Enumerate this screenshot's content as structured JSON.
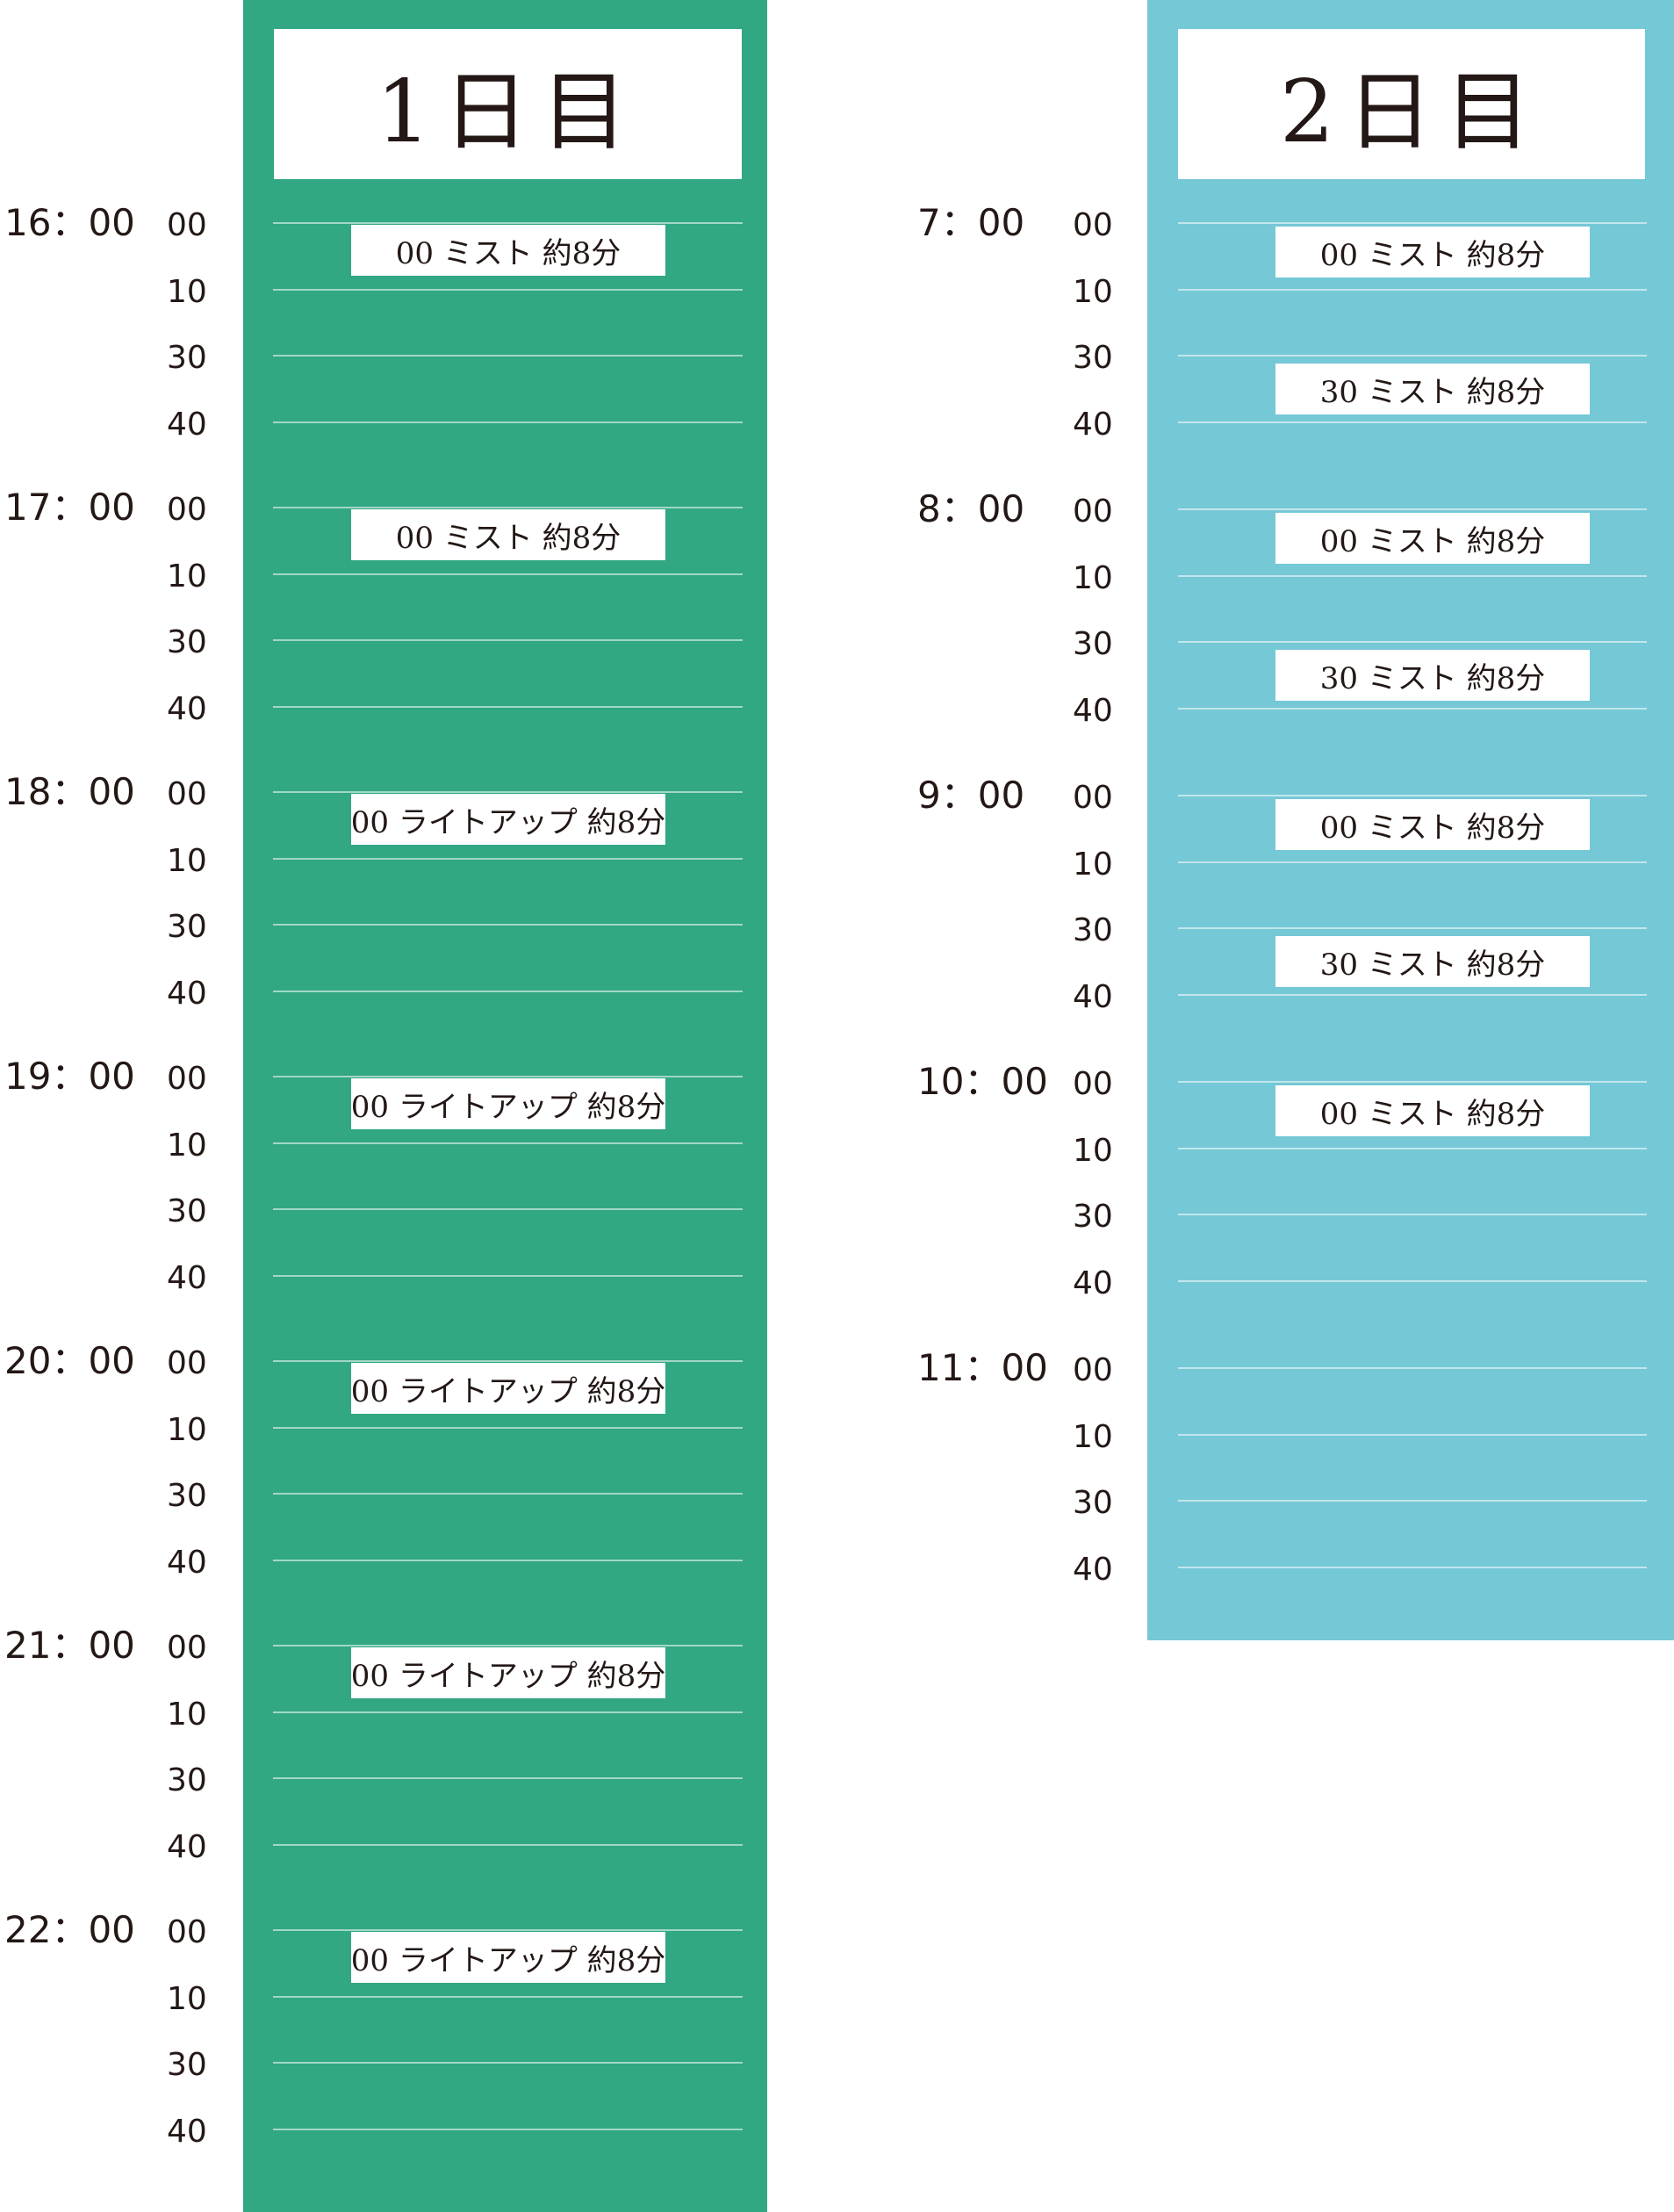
{
  "day1": {
    "title": "1日目",
    "hours": [
      {
        "hour": "16：00",
        "minutes": [
          "00",
          "10",
          "30",
          "40"
        ],
        "events": [
          {
            "text": "00 ミスト 約8分"
          }
        ]
      },
      {
        "hour": "17：00",
        "minutes": [
          "00",
          "10",
          "30",
          "40"
        ],
        "events": [
          {
            "text": "00 ミスト 約8分"
          }
        ]
      },
      {
        "hour": "18：00",
        "minutes": [
          "00",
          "10",
          "30",
          "40"
        ],
        "events": [
          {
            "text": "00 ライトアップ 約8分"
          }
        ]
      },
      {
        "hour": "19：00",
        "minutes": [
          "00",
          "10",
          "30",
          "40"
        ],
        "events": [
          {
            "text": "00 ライトアップ 約8分"
          }
        ]
      },
      {
        "hour": "20：00",
        "minutes": [
          "00",
          "10",
          "30",
          "40"
        ],
        "events": [
          {
            "text": "00 ライトアップ 約8分"
          }
        ]
      },
      {
        "hour": "21：00",
        "minutes": [
          "00",
          "10",
          "30",
          "40"
        ],
        "events": [
          {
            "text": "00 ライトアップ 約8分"
          }
        ]
      },
      {
        "hour": "22：00",
        "minutes": [
          "00",
          "10",
          "30",
          "40"
        ],
        "events": [
          {
            "text": "00 ライトアップ 約8分"
          }
        ]
      }
    ]
  },
  "day2": {
    "title": "2日目",
    "hours": [
      {
        "hour": "7：00",
        "minutes": [
          "00",
          "10",
          "30",
          "40"
        ],
        "events": [
          {
            "text": "00 ミスト 約8分"
          },
          {
            "text": "30 ミスト 約8分"
          }
        ]
      },
      {
        "hour": "8：00",
        "minutes": [
          "00",
          "10",
          "30",
          "40"
        ],
        "events": [
          {
            "text": "00 ミスト 約8分"
          },
          {
            "text": "30 ミスト 約8分"
          }
        ]
      },
      {
        "hour": "9：00",
        "minutes": [
          "00",
          "10",
          "30",
          "40"
        ],
        "events": [
          {
            "text": "00 ミスト 約8分"
          },
          {
            "text": "30 ミスト 約8分"
          }
        ]
      },
      {
        "hour": "10：00",
        "minutes": [
          "00",
          "10",
          "30",
          "40"
        ],
        "events": [
          {
            "text": "00 ミスト 約8分"
          }
        ]
      },
      {
        "hour": "11：00",
        "minutes": [
          "00",
          "10",
          "30",
          "40"
        ],
        "events": []
      }
    ]
  },
  "colors": {
    "day1_accent": "#31a783",
    "day2_accent": "#75c8d6"
  }
}
